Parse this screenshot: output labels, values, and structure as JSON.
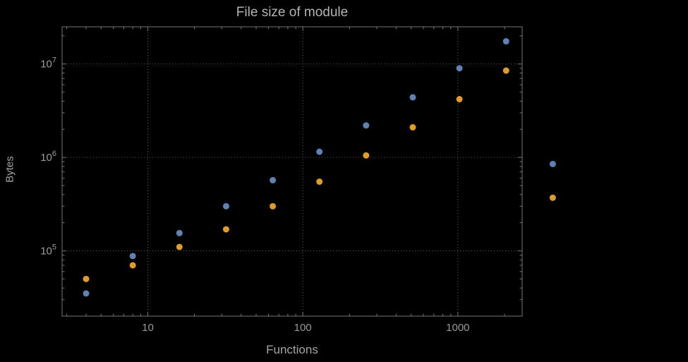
{
  "page": {
    "background": "#000000"
  },
  "chart_data": {
    "type": "scatter",
    "title": "File size of module",
    "xlabel": "Functions",
    "ylabel": "Bytes",
    "x_scale": "log",
    "y_scale": "log",
    "xlim": [
      2.8,
      2600
    ],
    "ylim": [
      20000,
      25000000
    ],
    "x_ticks": [
      10,
      100,
      1000
    ],
    "x_tick_labels": [
      "10",
      "100",
      "1000"
    ],
    "y_ticks": [
      100000,
      1000000,
      10000000
    ],
    "y_tick_labels": [
      {
        "base": "10",
        "exp": "5"
      },
      {
        "base": "10",
        "exp": "6"
      },
      {
        "base": "10",
        "exp": "7"
      }
    ],
    "grid": {
      "style": "dotted",
      "color": "#5c5c5c"
    },
    "legend": "none",
    "frame_color": "#757575",
    "label_color": "#9c9c9c",
    "title_color": "#b3b3b3",
    "point_radius": 4.5,
    "series": [
      {
        "name": "series-1",
        "color": "#5e82b5",
        "points": [
          [
            4,
            35000
          ],
          [
            8,
            88000
          ],
          [
            16,
            155000
          ],
          [
            32,
            300000
          ],
          [
            64,
            570000
          ],
          [
            128,
            1150000
          ],
          [
            256,
            2200000
          ],
          [
            512,
            4400000
          ],
          [
            1024,
            9000000
          ],
          [
            2048,
            17500000
          ],
          [
            4096,
            850000
          ]
        ]
      },
      {
        "name": "series-2",
        "color": "#e19c24",
        "points": [
          [
            4,
            50000
          ],
          [
            8,
            70000
          ],
          [
            16,
            110000
          ],
          [
            32,
            170000
          ],
          [
            64,
            300000
          ],
          [
            128,
            550000
          ],
          [
            256,
            1050000
          ],
          [
            512,
            2100000
          ],
          [
            1024,
            4200000
          ],
          [
            2048,
            8500000
          ],
          [
            4096,
            370000
          ]
        ]
      }
    ]
  }
}
